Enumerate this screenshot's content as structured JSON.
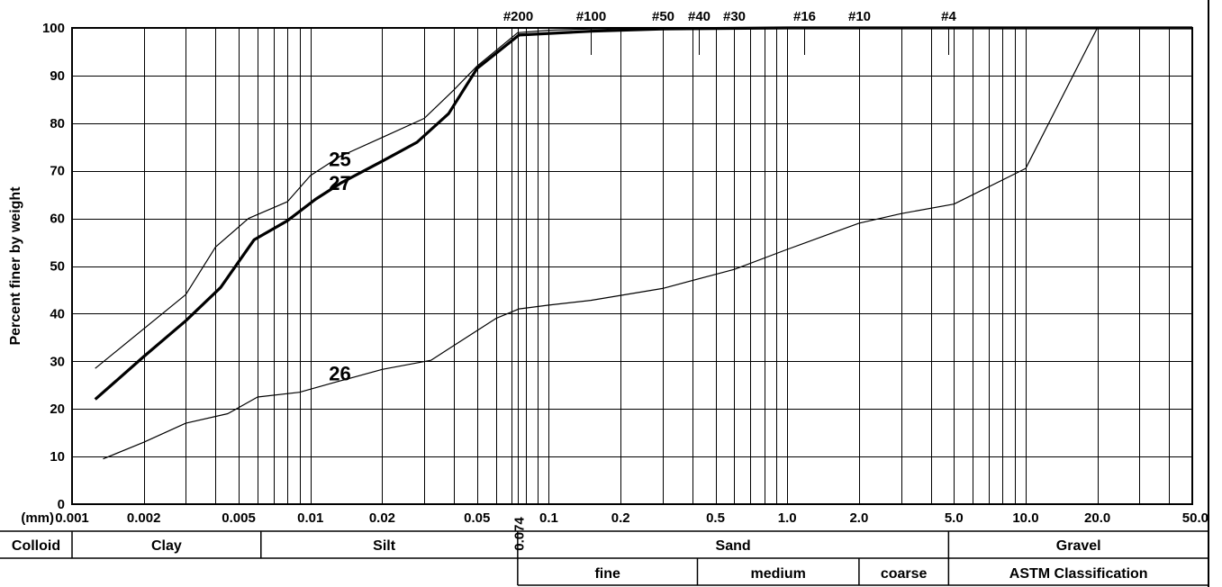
{
  "chart_data": {
    "type": "line",
    "x_scale": "log",
    "xlim": [
      0.001,
      50.0
    ],
    "ylim": [
      0,
      100
    ],
    "grid": true,
    "ylabel": "Percent finer by weight",
    "x_unit_label": "(mm)",
    "y_ticks": [
      0,
      10,
      20,
      30,
      40,
      50,
      60,
      70,
      80,
      90,
      100
    ],
    "x_ticks": [
      {
        "value": 0.001,
        "label": "0.001"
      },
      {
        "value": 0.002,
        "label": "0.002"
      },
      {
        "value": 0.005,
        "label": "0.005"
      },
      {
        "value": 0.01,
        "label": "0.01"
      },
      {
        "value": 0.02,
        "label": "0.02"
      },
      {
        "value": 0.05,
        "label": "0.05"
      },
      {
        "value": 0.1,
        "label": "0.1"
      },
      {
        "value": 0.2,
        "label": "0.2"
      },
      {
        "value": 0.5,
        "label": "0.5"
      },
      {
        "value": 1.0,
        "label": "1.0"
      },
      {
        "value": 2.0,
        "label": "2.0"
      },
      {
        "value": 5.0,
        "label": "5.0"
      },
      {
        "value": 10.0,
        "label": "10.0"
      },
      {
        "value": 20.0,
        "label": "20.0"
      },
      {
        "value": 50.0,
        "label": "50.0"
      }
    ],
    "special_tick": {
      "value": 0.074,
      "label": "0.074"
    },
    "sieves": [
      {
        "label": "#200",
        "value": 0.074
      },
      {
        "label": "#100",
        "value": 0.15
      },
      {
        "label": "#50",
        "value": 0.3
      },
      {
        "label": "#40",
        "value": 0.425
      },
      {
        "label": "#30",
        "value": 0.6
      },
      {
        "label": "#16",
        "value": 1.18
      },
      {
        "label": "#10",
        "value": 2.0
      },
      {
        "label": "#4",
        "value": 4.75
      }
    ],
    "series": [
      {
        "name": "25",
        "weight": "thin",
        "points": [
          [
            0.00125,
            28.5
          ],
          [
            0.003,
            44
          ],
          [
            0.004,
            54
          ],
          [
            0.0055,
            60
          ],
          [
            0.008,
            63.5
          ],
          [
            0.01,
            69
          ],
          [
            0.0133,
            73
          ],
          [
            0.02,
            77
          ],
          [
            0.03,
            81
          ],
          [
            0.04,
            87
          ],
          [
            0.05,
            92
          ],
          [
            0.074,
            99
          ],
          [
            0.1,
            99.5
          ],
          [
            0.15,
            99.8
          ],
          [
            0.3,
            100
          ],
          [
            50.0,
            100
          ]
        ]
      },
      {
        "name": "27",
        "weight": "thick",
        "points": [
          [
            0.00125,
            22
          ],
          [
            0.002,
            31
          ],
          [
            0.003,
            38.5
          ],
          [
            0.0042,
            45.5
          ],
          [
            0.0058,
            55.5
          ],
          [
            0.008,
            59.5
          ],
          [
            0.0105,
            64
          ],
          [
            0.0135,
            67.5
          ],
          [
            0.02,
            72
          ],
          [
            0.028,
            76
          ],
          [
            0.038,
            82
          ],
          [
            0.05,
            91.5
          ],
          [
            0.075,
            98.5
          ],
          [
            0.15,
            99.3
          ],
          [
            0.3,
            99.8
          ],
          [
            1.0,
            100
          ],
          [
            50.0,
            100
          ]
        ]
      },
      {
        "name": "26",
        "weight": "thin",
        "points": [
          [
            0.00135,
            9.5
          ],
          [
            0.002,
            13
          ],
          [
            0.003,
            17
          ],
          [
            0.0045,
            19
          ],
          [
            0.006,
            22.5
          ],
          [
            0.009,
            23.5
          ],
          [
            0.0125,
            25.5
          ],
          [
            0.02,
            28.3
          ],
          [
            0.032,
            30.2
          ],
          [
            0.042,
            34
          ],
          [
            0.06,
            39
          ],
          [
            0.075,
            41
          ],
          [
            0.1,
            41.8
          ],
          [
            0.15,
            42.8
          ],
          [
            0.3,
            45.3
          ],
          [
            0.6,
            49.3
          ],
          [
            1.0,
            53.5
          ],
          [
            2.0,
            59
          ],
          [
            3.0,
            61
          ],
          [
            5.0,
            63
          ],
          [
            10.0,
            70.5
          ],
          [
            20.0,
            100
          ],
          [
            50.0,
            100
          ]
        ]
      }
    ],
    "curve_labels": [
      {
        "text": "25",
        "x": 0.0133,
        "y": 72.5
      },
      {
        "text": "27",
        "x": 0.0133,
        "y": 67.5
      },
      {
        "text": "26",
        "x": 0.0133,
        "y": 27.5
      }
    ],
    "classification": {
      "row1": [
        {
          "label": "Colloid",
          "from": null,
          "to": 0.001
        },
        {
          "label": "Clay",
          "from": 0.001,
          "to": 0.0062
        },
        {
          "label": "Silt",
          "from": 0.0062,
          "to": 0.067
        },
        {
          "label": "Sand",
          "from": 0.074,
          "to": 4.75
        },
        {
          "label": "Gravel",
          "from": 4.75,
          "to": 50.0
        }
      ],
      "row2": [
        {
          "label": "fine",
          "from": 0.074,
          "to": 0.42
        },
        {
          "label": "medium",
          "from": 0.42,
          "to": 2.0
        },
        {
          "label": "coarse",
          "from": 2.0,
          "to": 4.75
        },
        {
          "label": "ASTM Classification",
          "from": 4.75,
          "to": 50.0
        }
      ]
    }
  }
}
